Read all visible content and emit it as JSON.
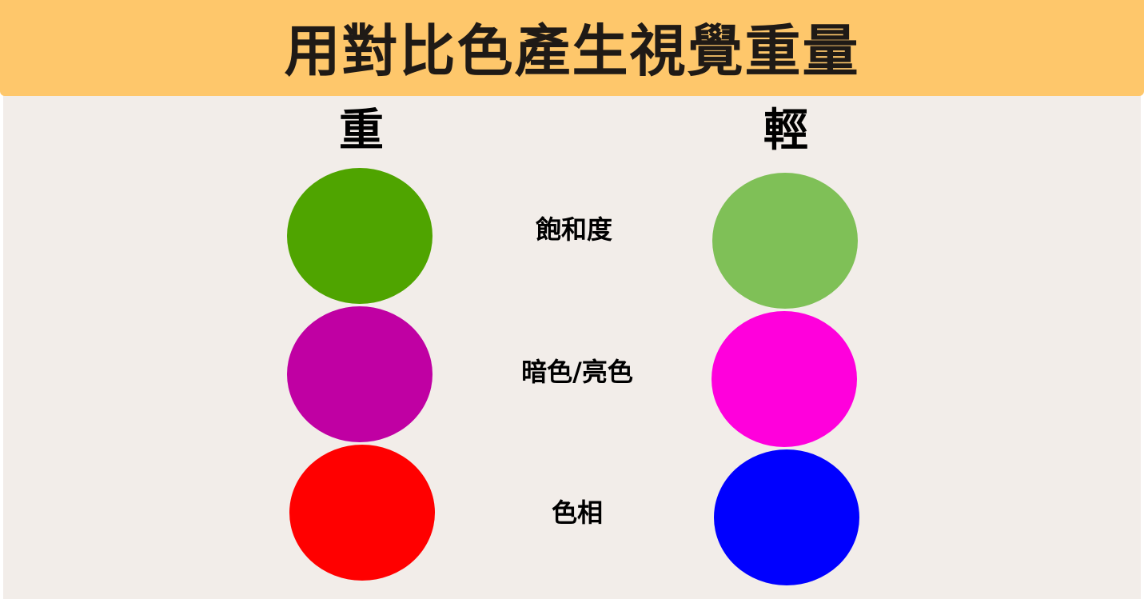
{
  "banner": {
    "title": "用對比色產生視覺重量"
  },
  "columns": {
    "heavy_label": "重",
    "light_label": "輕"
  },
  "rows": [
    {
      "label": "飽和度",
      "heavy_color": "#4fa400",
      "light_color": "#7fc057"
    },
    {
      "label": "暗色/亮色",
      "heavy_color": "#c000a3",
      "light_color": "#ff00dc"
    },
    {
      "label": "色相",
      "heavy_color": "#ff0000",
      "light_color": "#0000ff"
    }
  ],
  "colors": {
    "banner_bg": "#fec76b",
    "panel_bg": "#f2ede9",
    "title_text": "#1f1a16"
  }
}
